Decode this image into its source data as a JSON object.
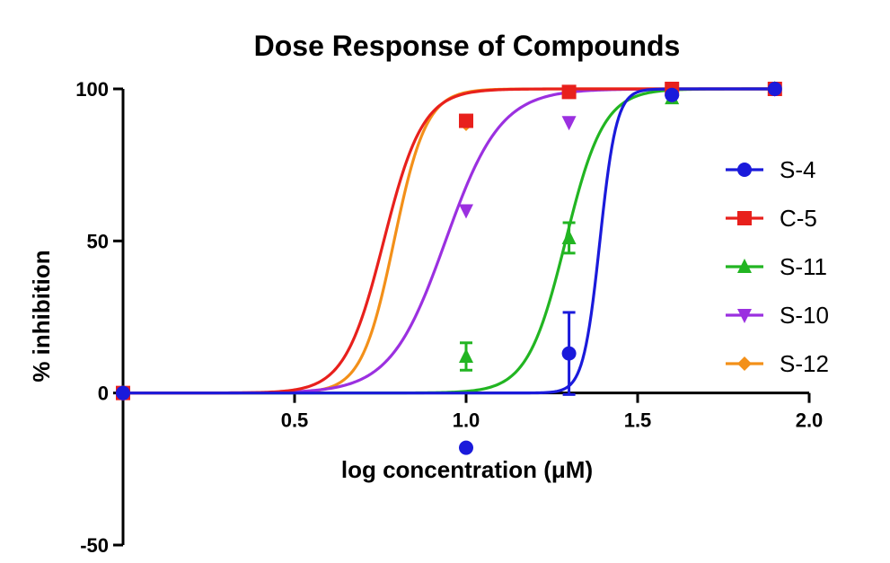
{
  "chart_data": {
    "type": "line",
    "title": "Dose Response of Compounds",
    "xlabel": "log concentration (μM)",
    "ylabel": "% inhibition",
    "xlim": [
      0,
      2.0
    ],
    "ylim": [
      -50,
      100
    ],
    "xticks": [
      0.5,
      1.0,
      1.5,
      2.0
    ],
    "xtick_labels": [
      "0.5",
      "1.0",
      "1.5",
      "2.0"
    ],
    "yticks": [
      -50,
      0,
      50,
      100
    ],
    "ytick_labels": [
      "-50",
      "0",
      "50",
      "100"
    ],
    "grid": false,
    "legend_position": "right",
    "series": [
      {
        "name": "S-4",
        "color": "#1a1adb",
        "marker": "circle",
        "points": [
          {
            "x": 0,
            "y": 0
          },
          {
            "x": 1.0,
            "y": -18
          },
          {
            "x": 1.3,
            "y": 13,
            "err": 13.5
          },
          {
            "x": 1.6,
            "y": 98
          },
          {
            "x": 1.9,
            "y": 100
          }
        ],
        "fit": {
          "ec50": 1.39,
          "hill": 18
        }
      },
      {
        "name": "C-5",
        "color": "#e8201c",
        "marker": "square",
        "points": [
          {
            "x": 0,
            "y": 0
          },
          {
            "x": 1.0,
            "y": 89.5
          },
          {
            "x": 1.3,
            "y": 99
          },
          {
            "x": 1.6,
            "y": 100
          },
          {
            "x": 1.9,
            "y": 100
          }
        ],
        "fit": {
          "ec50": 0.76,
          "hill": 7.6
        }
      },
      {
        "name": "S-11",
        "color": "#22b522",
        "marker": "triangle-up",
        "points": [
          {
            "x": 0,
            "y": 0
          },
          {
            "x": 1.0,
            "y": 12,
            "err": 4.5
          },
          {
            "x": 1.3,
            "y": 51,
            "err": 5
          },
          {
            "x": 1.6,
            "y": 97
          },
          {
            "x": 1.9,
            "y": 100
          }
        ],
        "fit": {
          "ec50": 1.29,
          "hill": 7.8
        }
      },
      {
        "name": "S-10",
        "color": "#9b30e0",
        "marker": "triangle-down",
        "points": [
          {
            "x": 0,
            "y": 0
          },
          {
            "x": 1.0,
            "y": 60
          },
          {
            "x": 1.3,
            "y": 89
          },
          {
            "x": 1.6,
            "y": 98
          },
          {
            "x": 1.9,
            "y": 100
          }
        ],
        "fit": {
          "ec50": 0.94,
          "hill": 5.4
        }
      },
      {
        "name": "S-12",
        "color": "#f39019",
        "marker": "diamond",
        "points": [
          {
            "x": 0,
            "y": 0
          },
          {
            "x": 1.0,
            "y": 88.5
          },
          {
            "x": 1.3,
            "y": 99
          },
          {
            "x": 1.6,
            "y": 100
          },
          {
            "x": 1.9,
            "y": 100
          }
        ],
        "fit": {
          "ec50": 0.79,
          "hill": 9.2
        }
      }
    ]
  }
}
